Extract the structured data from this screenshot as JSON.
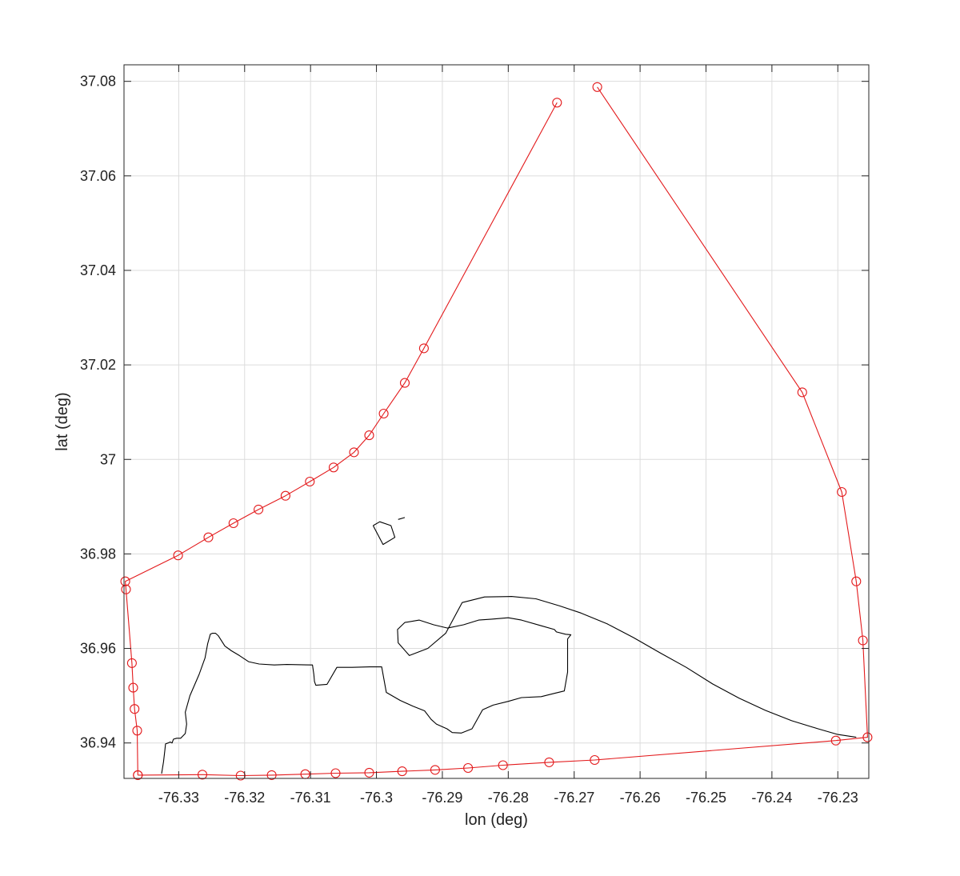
{
  "chart_data": {
    "type": "line",
    "title": "",
    "xlabel": "lon (deg)",
    "ylabel": "lat (deg)",
    "xlim": [
      -76.3383,
      -76.2253
    ],
    "ylim": [
      36.9325,
      37.0835
    ],
    "xticks": [
      -76.33,
      -76.32,
      -76.31,
      -76.3,
      -76.29,
      -76.28,
      -76.27,
      -76.26,
      -76.25,
      -76.24,
      -76.23
    ],
    "xtick_labels": [
      "-76.33",
      "-76.32",
      "-76.31",
      "-76.3",
      "-76.29",
      "-76.28",
      "-76.27",
      "-76.26",
      "-76.25",
      "-76.24",
      "-76.23"
    ],
    "yticks": [
      36.94,
      36.96,
      36.98,
      37.0,
      37.02,
      37.04,
      37.06,
      37.08
    ],
    "ytick_labels": [
      "36.94",
      "36.96",
      "36.98",
      "37",
      "37.02",
      "37.04",
      "37.06",
      "37.08"
    ],
    "grid": true,
    "legend": "none",
    "series": [
      {
        "color": "#e31a1c",
        "marker": "circle",
        "x": [
          -76.2726,
          -76.2928,
          -76.2957,
          -76.2989,
          -76.3011,
          -76.3034,
          -76.3065,
          -76.3101,
          -76.3138,
          -76.3179,
          -76.3217,
          -76.3255,
          -76.3301,
          -76.3381,
          -76.338,
          -76.3371,
          -76.3369,
          -76.3367,
          -76.3363,
          -76.3362
        ],
        "y": [
          37.0755,
          37.0235,
          37.0162,
          37.0097,
          37.0051,
          37.0015,
          36.9983,
          36.9953,
          36.9923,
          36.9894,
          36.9865,
          36.9835,
          36.9797,
          36.9742,
          36.9725,
          36.9569,
          36.9517,
          36.9472,
          36.9426,
          36.9332
        ]
      },
      {
        "color": "#e31a1c",
        "marker": "circle",
        "x": [
          -76.3362,
          -76.3264,
          -76.3206,
          -76.3159,
          -76.3108,
          -76.3062,
          -76.3011,
          -76.2961,
          -76.2911,
          -76.2861,
          -76.2808,
          -76.2738,
          -76.2669,
          -76.2303,
          -76.2255,
          -76.2262,
          -76.2272,
          -76.2294,
          -76.2354,
          -76.2665
        ],
        "y": [
          36.9332,
          36.9333,
          36.9331,
          36.9332,
          36.9334,
          36.9336,
          36.9337,
          36.934,
          36.9343,
          36.9347,
          36.9353,
          36.9359,
          36.9364,
          36.9405,
          36.9412,
          36.9617,
          36.9742,
          36.9931,
          37.0142,
          37.0788
        ]
      },
      {
        "name_hidden": true,
        "color": "#000000",
        "marker": "none",
        "x": [
          -76.3326,
          -76.3323,
          -76.3321,
          -76.332,
          -76.3316,
          -76.3313,
          -76.331,
          -76.3308,
          -76.3303,
          -76.3297,
          -76.329,
          -76.3288,
          -76.329,
          -76.3283,
          -76.3269,
          -76.326,
          -76.3256,
          -76.3252,
          -76.3249,
          -76.3244,
          -76.324,
          -76.323,
          -76.322,
          -76.3208,
          -76.3194,
          -76.3178,
          -76.3155,
          -76.3136,
          -76.3097,
          -76.3095,
          -76.3094,
          -76.3092,
          -76.3075,
          -76.306,
          -76.3037,
          -76.301,
          -76.2992,
          -76.2985,
          -76.2964,
          -76.2945,
          -76.2927,
          -76.2917,
          -76.2909,
          -76.2893,
          -76.2885,
          -76.2871,
          -76.2855,
          -76.2839,
          -76.2823,
          -76.28,
          -76.278,
          -76.275,
          -76.273,
          -76.2715,
          -76.271,
          -76.271,
          -76.2705,
          -76.2713,
          -76.2727,
          -76.273,
          -76.275,
          -76.278,
          -76.28,
          -76.2825,
          -76.2845,
          -76.2868,
          -76.2892,
          -76.2913,
          -76.2935,
          -76.2957,
          -76.2968,
          -76.2967,
          -76.295,
          -76.2922,
          -76.2895,
          -76.287,
          -76.2836,
          -76.2795,
          -76.2758,
          -76.2722,
          -76.269,
          -76.265,
          -76.261,
          -76.257,
          -76.253,
          -76.249,
          -76.245,
          -76.241,
          -76.237,
          -76.233,
          -76.23,
          -76.2272
        ],
        "y": [
          36.9335,
          36.936,
          36.9385,
          36.9398,
          36.94,
          36.9402,
          36.94,
          36.9408,
          36.941,
          36.941,
          36.942,
          36.944,
          36.9465,
          36.95,
          36.9545,
          36.958,
          36.961,
          36.963,
          36.9632,
          36.9632,
          36.9627,
          36.9605,
          36.9595,
          36.9585,
          36.9572,
          36.9567,
          36.9565,
          36.9566,
          36.9565,
          36.9545,
          36.953,
          36.9522,
          36.9524,
          36.956,
          36.956,
          36.9561,
          36.9561,
          36.9507,
          36.949,
          36.9478,
          36.9468,
          36.945,
          36.944,
          36.943,
          36.9422,
          36.9421,
          36.943,
          36.947,
          36.948,
          36.9488,
          36.9496,
          36.9498,
          36.9505,
          36.951,
          36.955,
          36.962,
          36.9629,
          36.963,
          36.9635,
          36.964,
          36.9648,
          36.966,
          36.9665,
          36.9662,
          36.966,
          36.965,
          36.9643,
          36.965,
          36.966,
          36.9655,
          36.964,
          36.9612,
          36.9585,
          36.96,
          36.9632,
          36.9697,
          36.9709,
          36.971,
          36.9705,
          36.969,
          36.9675,
          36.9652,
          36.9623,
          36.9591,
          36.956,
          36.9525,
          36.9495,
          36.9469,
          36.9447,
          36.943,
          36.9418,
          36.9412
        ]
      },
      {
        "color": "#000000",
        "marker": "none",
        "x": [
          -76.3005,
          -76.2995,
          -76.2978,
          -76.2972,
          -76.299,
          -76.3005
        ],
        "y": [
          36.986,
          36.9868,
          36.986,
          36.9835,
          36.982,
          36.986
        ]
      },
      {
        "color": "#000000",
        "marker": "none",
        "x": [
          -76.2967,
          -76.2957
        ],
        "y": [
          36.9873,
          36.9877
        ]
      }
    ]
  }
}
